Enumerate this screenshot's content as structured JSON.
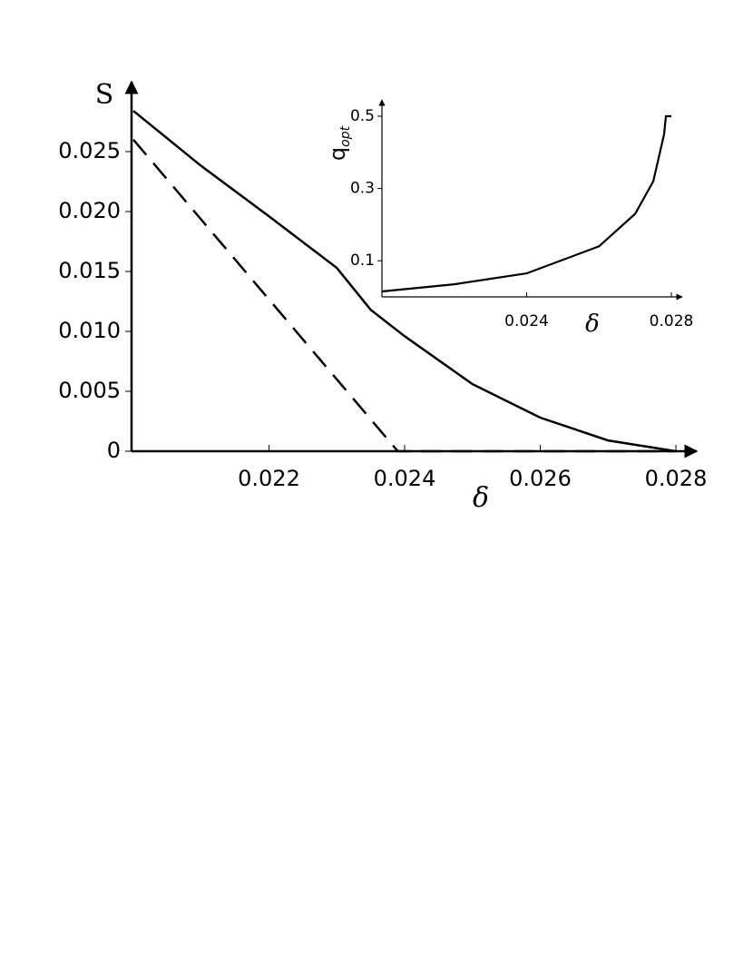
{
  "chart_data": [
    {
      "type": "line",
      "x_label": "δ",
      "y_label": "S",
      "xlim": [
        0.02,
        0.028
      ],
      "ylim": [
        0,
        0.03
      ],
      "xticks": [
        0.022,
        0.024,
        0.026,
        0.028
      ],
      "yticks": [
        0,
        0.005,
        {
          "value": 0.01,
          "label": "0.010"
        },
        0.015,
        {
          "value": 0.02,
          "label": "0.020"
        },
        0.025
      ],
      "grid": false,
      "series": [
        {
          "color": "#000000",
          "dashed": false,
          "x": [
            0.02,
            0.021,
            0.022,
            0.023,
            0.0235,
            0.024,
            0.025,
            0.026,
            0.027,
            0.028
          ],
          "values": [
            0.0284,
            0.0238,
            0.0196,
            0.0153,
            0.0118,
            0.0096,
            0.0056,
            0.0028,
            0.0009,
            0
          ]
        },
        {
          "color": "#000000",
          "dashed": true,
          "x": [
            0.02,
            0.0239,
            0.028
          ],
          "values": [
            0.026,
            0,
            0
          ]
        }
      ]
    },
    {
      "type": "line",
      "x_label": "δ",
      "y_label": "q",
      "y_label_subscript": "opt",
      "xlim": [
        0.02,
        0.028
      ],
      "ylim": [
        0,
        0.5
      ],
      "xticks": [
        0.024,
        0.028
      ],
      "yticks": [
        0.1,
        0.3,
        0.5
      ],
      "grid": false,
      "series": [
        {
          "color": "#000000",
          "dashed": false,
          "x": [
            0.02,
            0.022,
            0.024,
            0.026,
            0.027,
            0.0275,
            0.0278,
            0.02785,
            0.028
          ],
          "values": [
            0.015,
            0.035,
            0.065,
            0.14,
            0.23,
            0.32,
            0.45,
            0.5,
            0.5
          ]
        }
      ]
    }
  ]
}
